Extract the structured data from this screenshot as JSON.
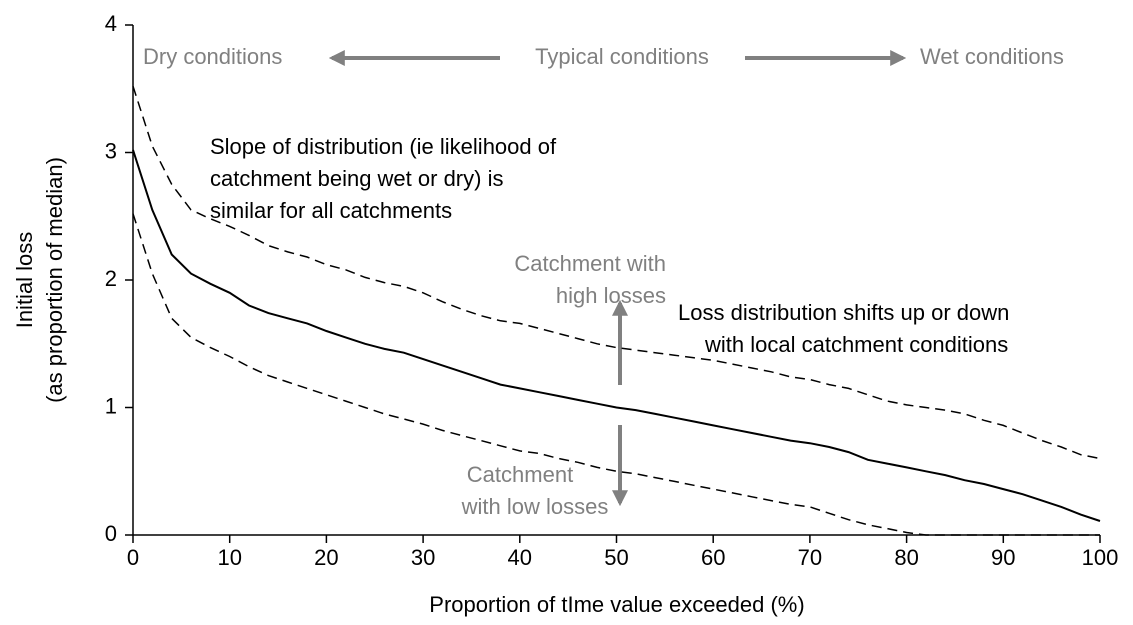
{
  "chart_data": {
    "type": "line",
    "xlabel": "Proportion of tIme value exceeded (%)",
    "ylabel": [
      "Initial loss",
      "(as proportion of median)"
    ],
    "x": [
      0,
      2,
      4,
      6,
      8,
      10,
      12,
      14,
      16,
      18,
      20,
      22,
      24,
      26,
      28,
      30,
      32,
      34,
      36,
      38,
      40,
      42,
      44,
      46,
      48,
      50,
      52,
      54,
      56,
      58,
      60,
      62,
      64,
      66,
      68,
      70,
      72,
      74,
      76,
      78,
      80,
      82,
      84,
      86,
      88,
      90,
      92,
      94,
      96,
      98,
      100
    ],
    "series": [
      {
        "color": "#000000",
        "style": "solid",
        "values": [
          3.02,
          2.55,
          2.2,
          2.05,
          1.97,
          1.9,
          1.8,
          1.74,
          1.7,
          1.66,
          1.6,
          1.55,
          1.5,
          1.46,
          1.43,
          1.38,
          1.33,
          1.28,
          1.23,
          1.18,
          1.15,
          1.12,
          1.09,
          1.06,
          1.03,
          1.0,
          0.98,
          0.95,
          0.92,
          0.89,
          0.86,
          0.83,
          0.8,
          0.77,
          0.74,
          0.72,
          0.69,
          0.65,
          0.59,
          0.56,
          0.53,
          0.5,
          0.47,
          0.43,
          0.4,
          0.36,
          0.32,
          0.27,
          0.22,
          0.16,
          0.11
        ]
      },
      {
        "color": "#000000",
        "style": "dashed",
        "values": [
          3.52,
          3.05,
          2.75,
          2.55,
          2.48,
          2.42,
          2.35,
          2.27,
          2.22,
          2.18,
          2.12,
          2.08,
          2.02,
          1.98,
          1.95,
          1.9,
          1.83,
          1.77,
          1.72,
          1.68,
          1.66,
          1.62,
          1.58,
          1.54,
          1.5,
          1.47,
          1.45,
          1.43,
          1.41,
          1.39,
          1.37,
          1.34,
          1.31,
          1.28,
          1.24,
          1.22,
          1.18,
          1.15,
          1.1,
          1.05,
          1.02,
          1.0,
          0.98,
          0.95,
          0.9,
          0.86,
          0.8,
          0.74,
          0.69,
          0.63,
          0.6
        ]
      },
      {
        "color": "#000000",
        "style": "dashed",
        "values": [
          2.52,
          2.05,
          1.7,
          1.55,
          1.47,
          1.4,
          1.32,
          1.25,
          1.2,
          1.15,
          1.1,
          1.05,
          1.0,
          0.95,
          0.91,
          0.87,
          0.82,
          0.78,
          0.74,
          0.7,
          0.66,
          0.64,
          0.6,
          0.57,
          0.53,
          0.5,
          0.48,
          0.45,
          0.42,
          0.39,
          0.36,
          0.33,
          0.3,
          0.27,
          0.24,
          0.22,
          0.17,
          0.12,
          0.08,
          0.05,
          0.02,
          0,
          0,
          0,
          0,
          0,
          0,
          0,
          0,
          0,
          0
        ]
      }
    ],
    "xlim": [
      0,
      100
    ],
    "ylim": [
      0,
      4
    ],
    "xticks": [
      0,
      10,
      20,
      30,
      40,
      50,
      60,
      70,
      80,
      90,
      100
    ],
    "yticks": [
      0,
      1,
      2,
      3,
      4
    ],
    "annotations": [
      "Dry conditions",
      "Typical conditions",
      "Wet conditions",
      "Slope of distribution (ie likelihood of",
      "catchment being wet or dry) is",
      "similar for all catchments",
      "Catchment with",
      "high losses",
      "Loss distribution shifts up or down",
      "with local catchment conditions",
      "Catchment",
      "with low losses"
    ],
    "annotation_color": "#808080"
  }
}
